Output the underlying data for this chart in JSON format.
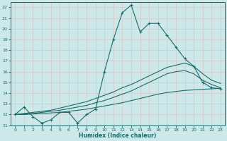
{
  "xlabel": "Humidex (Indice chaleur)",
  "xlim": [
    -0.5,
    23.5
  ],
  "ylim": [
    11,
    22.5
  ],
  "yticks": [
    11,
    12,
    13,
    14,
    15,
    16,
    17,
    18,
    19,
    20,
    21,
    22
  ],
  "xticks": [
    0,
    1,
    2,
    3,
    4,
    5,
    6,
    7,
    8,
    9,
    10,
    11,
    12,
    13,
    14,
    15,
    16,
    17,
    18,
    19,
    20,
    21,
    22,
    23
  ],
  "bg_color": "#cce8e8",
  "grid_color": "#b0d0d0",
  "line_color": "#1a6b6b",
  "wavy_x": [
    0,
    1,
    2,
    3,
    4,
    5,
    6,
    7,
    8,
    9,
    10,
    11,
    12,
    13,
    14,
    15,
    16,
    17,
    18,
    19,
    20,
    21,
    22,
    23
  ],
  "wavy_y": [
    12.0,
    12.7,
    11.8,
    11.2,
    11.5,
    12.2,
    12.2,
    11.2,
    12.0,
    12.5,
    16.0,
    19.0,
    21.5,
    22.2,
    19.7,
    20.5,
    20.5,
    19.4,
    18.3,
    17.2,
    16.5,
    15.0,
    14.5,
    14.4
  ],
  "smooth1_x": [
    0,
    1,
    2,
    3,
    4,
    5,
    6,
    7,
    8,
    9,
    10,
    11,
    12,
    13,
    14,
    15,
    16,
    17,
    18,
    19,
    20,
    21,
    22,
    23
  ],
  "smooth1_y": [
    12.0,
    12.1,
    12.2,
    12.3,
    12.4,
    12.6,
    12.8,
    13.0,
    13.2,
    13.5,
    13.8,
    14.1,
    14.5,
    14.8,
    15.2,
    15.6,
    16.0,
    16.4,
    16.6,
    16.8,
    16.5,
    15.8,
    15.2,
    14.9
  ],
  "smooth2_x": [
    0,
    1,
    2,
    3,
    4,
    5,
    6,
    7,
    8,
    9,
    10,
    11,
    12,
    13,
    14,
    15,
    16,
    17,
    18,
    19,
    20,
    21,
    22,
    23
  ],
  "smooth2_y": [
    12.0,
    12.05,
    12.1,
    12.2,
    12.3,
    12.4,
    12.55,
    12.7,
    12.85,
    13.1,
    13.3,
    13.6,
    13.9,
    14.2,
    14.6,
    15.0,
    15.4,
    15.8,
    16.0,
    16.1,
    15.8,
    15.2,
    14.8,
    14.5
  ],
  "smooth3_x": [
    0,
    1,
    2,
    3,
    4,
    5,
    6,
    7,
    8,
    9,
    10,
    11,
    12,
    13,
    14,
    15,
    16,
    17,
    18,
    19,
    20,
    21,
    22,
    23
  ],
  "smooth3_y": [
    12.0,
    12.0,
    12.05,
    12.1,
    12.15,
    12.2,
    12.3,
    12.4,
    12.5,
    12.65,
    12.8,
    12.95,
    13.1,
    13.3,
    13.5,
    13.7,
    13.9,
    14.05,
    14.15,
    14.25,
    14.3,
    14.35,
    14.4,
    14.45
  ]
}
